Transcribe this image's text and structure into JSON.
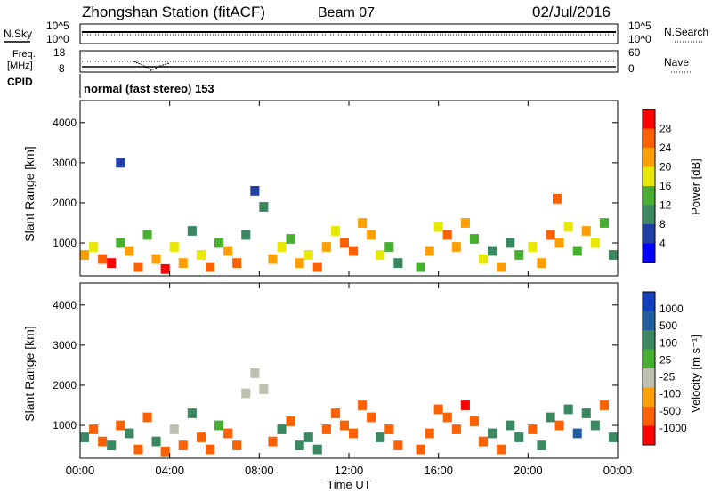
{
  "header": {
    "station": "Zhongshan Station (fitACF)",
    "beam": "Beam 07",
    "date": "02/Jul/2016"
  },
  "strip_noise": {
    "left_label": "N.Sky",
    "right_label": "N.Search",
    "left_ticks": [
      "10^5",
      "10^0"
    ],
    "right_ticks": [
      "10^5",
      "10^0"
    ]
  },
  "strip_freq": {
    "left_label_1": "Freq.",
    "left_label_2": "[MHz]",
    "left_ticks": [
      "18",
      "8"
    ],
    "right_label": "Nave",
    "right_ticks": [
      "60",
      "0"
    ]
  },
  "cpid": {
    "label": "CPID",
    "value": "normal (fast stereo) 153"
  },
  "colors": {
    "power": [
      "#0000ff",
      "#2040a8",
      "#3a8860",
      "#48b030",
      "#e8e800",
      "#ffa000",
      "#ff6000",
      "#ff0000"
    ],
    "velocity": [
      "#ff0000",
      "#ff6000",
      "#ffa000",
      "#c0c0b0",
      "#48b030",
      "#3a8860",
      "#2060a0",
      "#1040c0"
    ]
  },
  "chart_data": [
    {
      "type": "heatmap",
      "name": "power",
      "ylabel": "Slant Range [km]",
      "colorbar_label": "Power [dB]",
      "colorbar_ticks": [
        "28",
        "24",
        "20",
        "16",
        "12",
        "8",
        "4"
      ],
      "yticks": [
        "4000",
        "3000",
        "2000",
        "1000"
      ],
      "ylim": [
        180,
        4550
      ],
      "xlim": [
        0,
        24
      ],
      "x_unit": "hours UT",
      "cells": [
        [
          0.2,
          700,
          22
        ],
        [
          0.6,
          900,
          18
        ],
        [
          1.0,
          600,
          24
        ],
        [
          1.4,
          500,
          28
        ],
        [
          1.8,
          1000,
          14
        ],
        [
          2.2,
          800,
          20
        ],
        [
          2.6,
          400,
          26
        ],
        [
          3.0,
          1200,
          12
        ],
        [
          3.4,
          600,
          20
        ],
        [
          3.8,
          350,
          28
        ],
        [
          4.2,
          900,
          16
        ],
        [
          4.6,
          500,
          22
        ],
        [
          5.0,
          1300,
          10
        ],
        [
          5.4,
          700,
          18
        ],
        [
          5.8,
          400,
          26
        ],
        [
          6.2,
          1000,
          14
        ],
        [
          6.6,
          800,
          20
        ],
        [
          7.0,
          500,
          24
        ],
        [
          7.4,
          1200,
          10
        ],
        [
          7.8,
          2300,
          6
        ],
        [
          8.2,
          1900,
          8
        ],
        [
          8.6,
          600,
          22
        ],
        [
          9.0,
          900,
          18
        ],
        [
          9.4,
          1100,
          12
        ],
        [
          9.8,
          500,
          20
        ],
        [
          10.2,
          700,
          16
        ],
        [
          10.6,
          400,
          24
        ],
        [
          11.0,
          900,
          20
        ],
        [
          11.4,
          1300,
          16
        ],
        [
          11.8,
          1000,
          24
        ],
        [
          12.2,
          800,
          26
        ],
        [
          12.6,
          1500,
          22
        ],
        [
          13.0,
          1200,
          20
        ],
        [
          13.4,
          700,
          16
        ],
        [
          13.8,
          900,
          12
        ],
        [
          14.2,
          500,
          10
        ],
        [
          15.2,
          400,
          14
        ],
        [
          15.6,
          800,
          20
        ],
        [
          16.0,
          1400,
          18
        ],
        [
          16.4,
          1200,
          24
        ],
        [
          16.8,
          900,
          22
        ],
        [
          17.2,
          1500,
          20
        ],
        [
          17.6,
          1100,
          14
        ],
        [
          18.0,
          600,
          18
        ],
        [
          18.4,
          800,
          10
        ],
        [
          18.8,
          400,
          20
        ],
        [
          19.2,
          1000,
          8
        ],
        [
          19.6,
          700,
          12
        ],
        [
          20.2,
          900,
          16
        ],
        [
          20.6,
          500,
          22
        ],
        [
          21.0,
          1200,
          24
        ],
        [
          21.4,
          1000,
          20
        ],
        [
          21.8,
          1400,
          18
        ],
        [
          22.2,
          800,
          14
        ],
        [
          22.6,
          1300,
          20
        ],
        [
          23.0,
          1000,
          16
        ],
        [
          23.4,
          1500,
          12
        ],
        [
          23.8,
          700,
          10
        ],
        [
          1.8,
          3000,
          6
        ],
        [
          21.3,
          2100,
          26
        ]
      ]
    },
    {
      "type": "heatmap",
      "name": "velocity",
      "ylabel": "Slant Range [km]",
      "colorbar_label": "Velocity [m s⁻¹]",
      "colorbar_ticks": [
        "1000",
        "500",
        "100",
        "25",
        "-25",
        "-100",
        "-500",
        "-1000"
      ],
      "yticks": [
        "4000",
        "3000",
        "2000",
        "1000"
      ],
      "ylim": [
        180,
        4550
      ],
      "xlim": [
        0,
        24
      ],
      "x_unit": "hours UT",
      "xticks": [
        "00:00",
        "04:00",
        "08:00",
        "12:00",
        "16:00",
        "20:00",
        "00:00"
      ],
      "xlabel": "Time UT",
      "cells": [
        [
          0.2,
          700,
          200
        ],
        [
          0.6,
          900,
          -300
        ],
        [
          1.0,
          600,
          -100
        ],
        [
          1.4,
          500,
          300
        ],
        [
          1.8,
          1000,
          -200
        ],
        [
          2.2,
          800,
          150
        ],
        [
          2.6,
          400,
          -150
        ],
        [
          3.0,
          1200,
          -400
        ],
        [
          3.4,
          600,
          200
        ],
        [
          3.8,
          350,
          -100
        ],
        [
          4.2,
          900,
          10
        ],
        [
          4.6,
          500,
          -200
        ],
        [
          5.0,
          1300,
          300
        ],
        [
          5.4,
          700,
          -300
        ],
        [
          5.8,
          400,
          -150
        ],
        [
          6.2,
          1000,
          100
        ],
        [
          6.6,
          800,
          -200
        ],
        [
          7.0,
          500,
          -100
        ],
        [
          7.4,
          1800,
          5
        ],
        [
          7.8,
          2300,
          0
        ],
        [
          8.2,
          1900,
          -10
        ],
        [
          8.6,
          600,
          -200
        ],
        [
          9.0,
          900,
          200
        ],
        [
          9.4,
          1100,
          -150
        ],
        [
          9.8,
          500,
          300
        ],
        [
          10.2,
          700,
          200
        ],
        [
          10.6,
          400,
          150
        ],
        [
          11.0,
          900,
          -200
        ],
        [
          11.4,
          1300,
          -300
        ],
        [
          11.8,
          1000,
          -400
        ],
        [
          12.2,
          800,
          -200
        ],
        [
          12.6,
          1500,
          -300
        ],
        [
          13.0,
          1200,
          -100
        ],
        [
          13.4,
          700,
          200
        ],
        [
          13.8,
          900,
          -150
        ],
        [
          14.2,
          500,
          -200
        ],
        [
          15.2,
          400,
          -300
        ],
        [
          15.6,
          800,
          -200
        ],
        [
          16.0,
          1400,
          -400
        ],
        [
          16.4,
          1200,
          -300
        ],
        [
          16.8,
          900,
          -150
        ],
        [
          17.2,
          1500,
          -500
        ],
        [
          17.6,
          1100,
          -200
        ],
        [
          18.0,
          600,
          -100
        ],
        [
          18.4,
          800,
          200
        ],
        [
          18.8,
          400,
          -100
        ],
        [
          19.2,
          1000,
          150
        ],
        [
          19.6,
          700,
          300
        ],
        [
          20.2,
          900,
          -200
        ],
        [
          20.6,
          500,
          200
        ],
        [
          21.0,
          1200,
          400
        ],
        [
          21.4,
          1000,
          -200
        ],
        [
          21.8,
          1400,
          300
        ],
        [
          22.2,
          800,
          600
        ],
        [
          22.6,
          1300,
          500
        ],
        [
          23.0,
          1000,
          300
        ],
        [
          23.4,
          1500,
          -200
        ],
        [
          23.8,
          700,
          200
        ]
      ]
    }
  ]
}
